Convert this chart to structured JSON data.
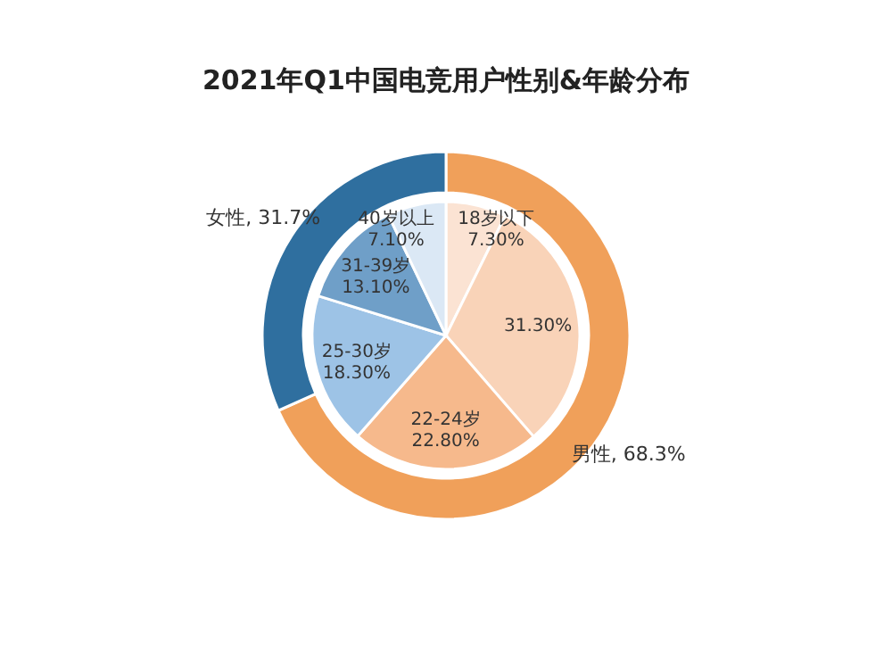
{
  "chart_data": [
    {
      "type": "donut",
      "title": "2021年Q1中国电竞用户性别&年龄分布",
      "categories": [
        "男性",
        "女性"
      ],
      "values": [
        68.3,
        31.7
      ],
      "colors": [
        "#f0a05a",
        "#2f6f9f"
      ],
      "value_labels": [
        "68.3%",
        "31.7%"
      ]
    },
    {
      "type": "pie",
      "categories": [
        "18岁以下",
        null,
        "22-24岁",
        "25-30岁",
        "31-39岁",
        "40岁以上"
      ],
      "values": [
        7.3,
        31.3,
        22.8,
        18.3,
        13.1,
        7.1
      ],
      "colors": [
        "#fbe3d3",
        "#f9d3b8",
        "#f6b98c",
        "#9dc3e6",
        "#6f9fc8",
        "#dbe8f5"
      ],
      "value_labels": [
        "7.30%",
        "31.30%",
        "22.80%",
        "18.30%",
        "13.10%",
        "7.10%"
      ]
    }
  ]
}
